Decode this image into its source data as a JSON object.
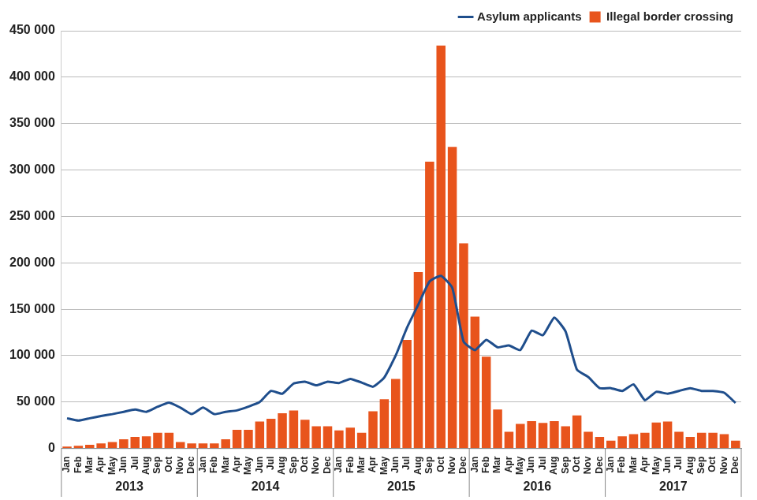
{
  "chart_data": {
    "type": "bar",
    "categories": [
      "Jan",
      "Feb",
      "Mar",
      "Apr",
      "May",
      "Jun",
      "Jul",
      "Aug",
      "Sep",
      "Oct",
      "Nov",
      "Dec",
      "Jan",
      "Feb",
      "Mar",
      "Apr",
      "May",
      "Jun",
      "Jul",
      "Aug",
      "Sep",
      "Oct",
      "Nov",
      "Dec",
      "Jan",
      "Feb",
      "Mar",
      "Apr",
      "May",
      "Jun",
      "Jul",
      "Aug",
      "Sep",
      "Oct",
      "Nov",
      "Dec",
      "Jan",
      "Feb",
      "Mar",
      "Apr",
      "May",
      "Jun",
      "Jul",
      "Aug",
      "Sep",
      "Oct",
      "Nov",
      "Dec",
      "Jan",
      "Feb",
      "Mar",
      "Apr",
      "May",
      "Jun",
      "Jul",
      "Aug",
      "Sep",
      "Oct",
      "Nov",
      "Dec"
    ],
    "x_groups": [
      "2013",
      "2014",
      "2015",
      "2016",
      "2017"
    ],
    "series": [
      {
        "name": "Illegal border crossing",
        "type": "bar",
        "color": "#e8541c",
        "values": [
          2000,
          3000,
          4000,
          5500,
          7000,
          10000,
          12500,
          13000,
          17000,
          17000,
          7000,
          5500,
          5500,
          5500,
          10000,
          20000,
          20000,
          29000,
          32000,
          38000,
          41000,
          31000,
          24000,
          24000,
          19500,
          22500,
          17000,
          40000,
          53000,
          75000,
          117000,
          190000,
          309000,
          434000,
          325000,
          221000,
          142000,
          99000,
          42000,
          18000,
          26500,
          29500,
          27500,
          29500,
          24000,
          35500,
          18000,
          12500,
          8500,
          13000,
          15500,
          17000,
          28000,
          29000,
          18000,
          12500,
          17000,
          17000,
          15500,
          8500
        ]
      },
      {
        "name": "Asylum applicants",
        "type": "line",
        "color": "#1f4e8c",
        "marker": "none",
        "values": [
          32500,
          30000,
          32500,
          35000,
          37000,
          39500,
          42000,
          39500,
          45000,
          49500,
          44000,
          37000,
          44000,
          37000,
          39500,
          41000,
          45000,
          50000,
          62000,
          59000,
          70000,
          72000,
          68000,
          72000,
          70500,
          75000,
          71000,
          66500,
          76500,
          100000,
          130000,
          155000,
          180000,
          186000,
          173000,
          115000,
          106000,
          117000,
          109000,
          111000,
          106000,
          127000,
          122000,
          141000,
          126000,
          85000,
          77000,
          65000,
          65000,
          62000,
          69000,
          52000,
          61000,
          59000,
          62000,
          65000,
          62000,
          62000,
          60000,
          49000
        ]
      }
    ],
    "ylim": [
      0,
      450000
    ],
    "yticks": [
      0,
      {
        "value": 50000,
        "label": "50 000"
      },
      {
        "value": 100000,
        "label": "100 000"
      },
      {
        "value": 150000,
        "label": "150 000"
      },
      {
        "value": 200000,
        "label": "200 000"
      },
      {
        "value": 250000,
        "label": "250 000"
      },
      {
        "value": 300000,
        "label": "300 000"
      },
      {
        "value": 350000,
        "label": "350 000"
      },
      {
        "value": 400000,
        "label": "400 000"
      },
      {
        "value": 450000,
        "label": "450 000"
      }
    ],
    "grid": true,
    "legend": "upper right"
  }
}
